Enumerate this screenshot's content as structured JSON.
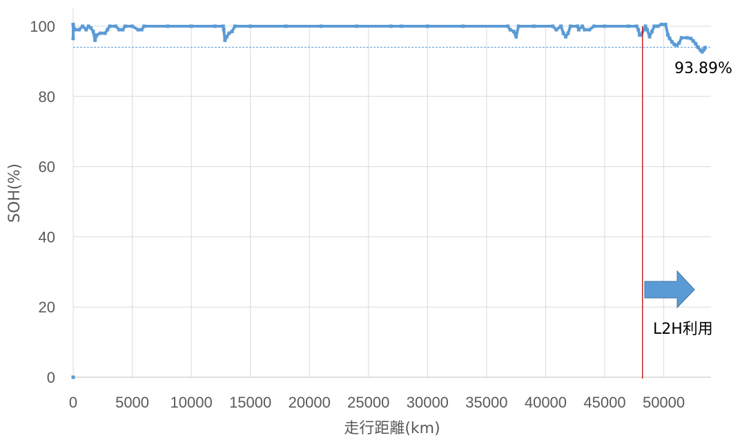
{
  "chart_data": {
    "type": "scatter",
    "title": "",
    "xlabel": "走行距離(km)",
    "ylabel": "SOH(%)",
    "xlim": [
      0,
      54000
    ],
    "ylim": [
      0,
      100
    ],
    "x_ticks": [
      "0",
      "5000",
      "10000",
      "15000",
      "20000",
      "25000",
      "30000",
      "35000",
      "40000",
      "45000",
      "50000"
    ],
    "y_ticks": [
      "0",
      "20",
      "40",
      "60",
      "80",
      "100"
    ],
    "grid": true,
    "series": [
      {
        "color": "#5b9bd5",
        "points": [
          [
            0,
            0
          ],
          [
            0,
            96.5
          ],
          [
            0,
            100.5
          ],
          [
            150,
            99
          ],
          [
            500,
            99
          ],
          [
            800,
            100
          ],
          [
            1100,
            99
          ],
          [
            1300,
            100
          ],
          [
            1500,
            99.5
          ],
          [
            1700,
            98.5
          ],
          [
            1850,
            96
          ],
          [
            2000,
            97.5
          ],
          [
            2300,
            98
          ],
          [
            2700,
            98
          ],
          [
            2900,
            99
          ],
          [
            3100,
            100
          ],
          [
            3600,
            100
          ],
          [
            3900,
            99
          ],
          [
            4200,
            99
          ],
          [
            4400,
            100
          ],
          [
            5000,
            100
          ],
          [
            5500,
            99
          ],
          [
            5800,
            99
          ],
          [
            6000,
            100
          ],
          [
            8000,
            100
          ],
          [
            10000,
            100
          ],
          [
            12000,
            100
          ],
          [
            12700,
            100
          ],
          [
            12750,
            99
          ],
          [
            12850,
            96
          ],
          [
            13000,
            97
          ],
          [
            13200,
            98
          ],
          [
            13450,
            98.5
          ],
          [
            13700,
            100
          ],
          [
            15000,
            100
          ],
          [
            18000,
            100
          ],
          [
            21000,
            100
          ],
          [
            24000,
            100
          ],
          [
            26900,
            100
          ],
          [
            27800,
            100
          ],
          [
            30000,
            100
          ],
          [
            33000,
            100
          ],
          [
            36800,
            100
          ],
          [
            37000,
            99
          ],
          [
            37300,
            98.5
          ],
          [
            37500,
            97
          ],
          [
            37700,
            100
          ],
          [
            39000,
            100
          ],
          [
            40600,
            100
          ],
          [
            40900,
            99
          ],
          [
            41300,
            100
          ],
          [
            41500,
            98
          ],
          [
            41700,
            97
          ],
          [
            41900,
            98
          ],
          [
            42100,
            100
          ],
          [
            42700,
            100
          ],
          [
            42800,
            99
          ],
          [
            43100,
            100
          ],
          [
            43300,
            99
          ],
          [
            43700,
            99
          ],
          [
            44100,
            100
          ],
          [
            45000,
            100
          ],
          [
            47000,
            100
          ],
          [
            47700,
            100
          ],
          [
            47850,
            99
          ],
          [
            47950,
            97.5
          ],
          [
            48100,
            97.5
          ],
          [
            48300,
            99
          ],
          [
            48450,
            100
          ],
          [
            48600,
            99
          ],
          [
            48800,
            97
          ],
          [
            49000,
            98.5
          ],
          [
            49200,
            100
          ],
          [
            49500,
            100
          ],
          [
            49800,
            100.5
          ],
          [
            50150,
            100.5
          ],
          [
            50350,
            97.5
          ],
          [
            50500,
            96.5
          ],
          [
            50700,
            95.5
          ],
          [
            50900,
            94.8
          ],
          [
            51100,
            94.5
          ],
          [
            51300,
            95.2
          ],
          [
            51500,
            96.7
          ],
          [
            52000,
            96.7
          ],
          [
            52300,
            96.5
          ],
          [
            52500,
            95.8
          ],
          [
            52700,
            95
          ],
          [
            52900,
            94
          ],
          [
            53100,
            93.2
          ],
          [
            53250,
            92.7
          ],
          [
            53400,
            93.3
          ],
          [
            53500,
            93.9
          ]
        ]
      }
    ],
    "reference_line_y": 94,
    "vertical_line_x": 48200,
    "vertical_line_color": "#c00000",
    "annotations": {
      "last_value": "93.89%",
      "l2h_label": "L2H利用"
    },
    "arrow_color": "#5b9bd5"
  }
}
